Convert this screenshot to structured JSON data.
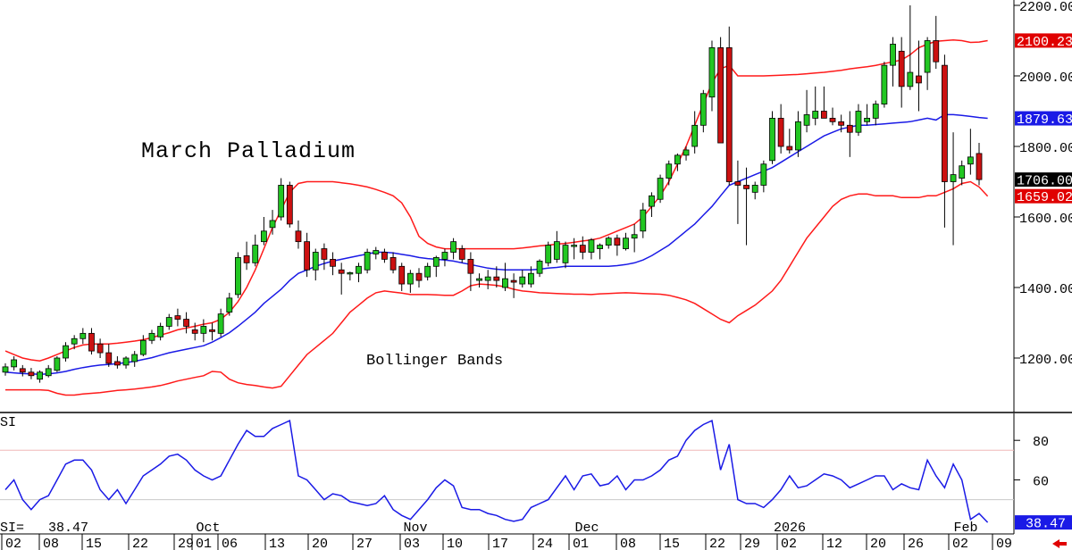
{
  "chart_data": [
    {
      "type": "candlestick",
      "title": "March Palladium",
      "annotation": "Bollinger Bands",
      "y_ticks": [
        1200,
        1400,
        1600,
        1800,
        2000,
        2200
      ],
      "y_tick_labels": [
        "1200.00",
        "1400.00",
        "1600.00",
        "1800.00",
        "2000.00",
        "2200.00"
      ],
      "ylim": [
        1100,
        2200
      ],
      "price_labels": [
        {
          "text": "2100.23",
          "value": 2100.23,
          "color": "#e00000"
        },
        {
          "text": "1879.63",
          "value": 1879.63,
          "color": "#1a1ae6"
        },
        {
          "text": "1706.00",
          "value": 1706.0,
          "color": "#000000"
        },
        {
          "text": "1659.02",
          "value": 1659.02,
          "color": "#e00000"
        }
      ],
      "colors": {
        "up": "#22c722",
        "down": "#cc1111",
        "band": "#ff1a1a",
        "middle": "#1a1ae6"
      },
      "grid": false,
      "ohlc": [
        [
          1160,
          1185,
          1150,
          1175
        ],
        [
          1175,
          1205,
          1165,
          1195
        ],
        [
          1170,
          1180,
          1148,
          1160
        ],
        [
          1160,
          1172,
          1140,
          1150
        ],
        [
          1140,
          1165,
          1130,
          1160
        ],
        [
          1150,
          1180,
          1145,
          1170
        ],
        [
          1165,
          1205,
          1160,
          1200
        ],
        [
          1200,
          1245,
          1190,
          1235
        ],
        [
          1240,
          1265,
          1225,
          1255
        ],
        [
          1255,
          1285,
          1240,
          1270
        ],
        [
          1270,
          1285,
          1210,
          1220
        ],
        [
          1240,
          1255,
          1200,
          1215
        ],
        [
          1215,
          1240,
          1175,
          1185
        ],
        [
          1190,
          1205,
          1170,
          1180
        ],
        [
          1180,
          1205,
          1170,
          1200
        ],
        [
          1190,
          1220,
          1175,
          1210
        ],
        [
          1210,
          1265,
          1205,
          1250
        ],
        [
          1250,
          1280,
          1240,
          1270
        ],
        [
          1260,
          1300,
          1250,
          1290
        ],
        [
          1290,
          1325,
          1280,
          1315
        ],
        [
          1320,
          1340,
          1290,
          1310
        ],
        [
          1310,
          1330,
          1270,
          1290
        ],
        [
          1280,
          1300,
          1250,
          1270
        ],
        [
          1270,
          1310,
          1245,
          1290
        ],
        [
          1280,
          1300,
          1250,
          1275
        ],
        [
          1270,
          1340,
          1260,
          1325
        ],
        [
          1330,
          1385,
          1320,
          1370
        ],
        [
          1380,
          1500,
          1370,
          1485
        ],
        [
          1490,
          1530,
          1450,
          1470
        ],
        [
          1470,
          1550,
          1460,
          1520
        ],
        [
          1530,
          1600,
          1520,
          1560
        ],
        [
          1570,
          1620,
          1550,
          1590
        ],
        [
          1600,
          1710,
          1590,
          1690
        ],
        [
          1690,
          1700,
          1570,
          1580
        ],
        [
          1560,
          1590,
          1510,
          1530
        ],
        [
          1530,
          1555,
          1430,
          1450
        ],
        [
          1450,
          1510,
          1420,
          1500
        ],
        [
          1510,
          1525,
          1450,
          1480
        ],
        [
          1480,
          1500,
          1435,
          1460
        ],
        [
          1450,
          1470,
          1380,
          1440
        ],
        [
          1440,
          1445,
          1420,
          1442
        ],
        [
          1440,
          1470,
          1415,
          1460
        ],
        [
          1450,
          1510,
          1440,
          1500
        ],
        [
          1495,
          1515,
          1480,
          1505
        ],
        [
          1500,
          1510,
          1470,
          1480
        ],
        [
          1485,
          1500,
          1440,
          1450
        ],
        [
          1460,
          1470,
          1390,
          1410
        ],
        [
          1410,
          1450,
          1385,
          1440
        ],
        [
          1440,
          1455,
          1400,
          1420
        ],
        [
          1430,
          1470,
          1420,
          1460
        ],
        [
          1460,
          1490,
          1430,
          1485
        ],
        [
          1480,
          1510,
          1460,
          1500
        ],
        [
          1500,
          1540,
          1480,
          1530
        ],
        [
          1510,
          1520,
          1470,
          1480
        ],
        [
          1480,
          1500,
          1390,
          1440
        ],
        [
          1420,
          1440,
          1400,
          1425
        ],
        [
          1420,
          1450,
          1395,
          1430
        ],
        [
          1430,
          1460,
          1400,
          1420
        ],
        [
          1400,
          1470,
          1390,
          1425
        ],
        [
          1420,
          1440,
          1370,
          1415
        ],
        [
          1410,
          1450,
          1400,
          1430
        ],
        [
          1410,
          1460,
          1400,
          1440
        ],
        [
          1440,
          1480,
          1430,
          1475
        ],
        [
          1470,
          1530,
          1460,
          1520
        ],
        [
          1480,
          1560,
          1470,
          1530
        ],
        [
          1470,
          1530,
          1455,
          1520
        ],
        [
          1520,
          1540,
          1480,
          1520
        ],
        [
          1520,
          1545,
          1480,
          1500
        ],
        [
          1500,
          1540,
          1480,
          1535
        ],
        [
          1510,
          1525,
          1480,
          1520
        ],
        [
          1520,
          1545,
          1510,
          1540
        ],
        [
          1540,
          1550,
          1490,
          1520
        ],
        [
          1510,
          1555,
          1505,
          1540
        ],
        [
          1540,
          1580,
          1500,
          1550
        ],
        [
          1560,
          1640,
          1540,
          1620
        ],
        [
          1630,
          1670,
          1600,
          1660
        ],
        [
          1650,
          1720,
          1640,
          1710
        ],
        [
          1710,
          1760,
          1690,
          1750
        ],
        [
          1750,
          1780,
          1730,
          1775
        ],
        [
          1775,
          1800,
          1760,
          1790
        ],
        [
          1800,
          1900,
          1780,
          1860
        ],
        [
          1860,
          1960,
          1840,
          1950
        ],
        [
          1940,
          2100,
          1900,
          2080
        ],
        [
          2080,
          2110,
          1820,
          1810
        ],
        [
          2080,
          2140,
          1690,
          1700
        ],
        [
          1700,
          1760,
          1580,
          1690
        ],
        [
          1690,
          1740,
          1520,
          1680
        ],
        [
          1670,
          1700,
          1650,
          1690
        ],
        [
          1690,
          1760,
          1670,
          1750
        ],
        [
          1760,
          1900,
          1750,
          1880
        ],
        [
          1880,
          1920,
          1780,
          1800
        ],
        [
          1800,
          1850,
          1780,
          1790
        ],
        [
          1790,
          1900,
          1770,
          1870
        ],
        [
          1860,
          1960,
          1840,
          1890
        ],
        [
          1880,
          1970,
          1860,
          1900
        ],
        [
          1900,
          1970,
          1880,
          1880
        ],
        [
          1880,
          1910,
          1860,
          1870
        ],
        [
          1870,
          1890,
          1840,
          1860
        ],
        [
          1860,
          1900,
          1770,
          1840
        ],
        [
          1840,
          1920,
          1830,
          1900
        ],
        [
          1870,
          1920,
          1860,
          1880
        ],
        [
          1880,
          1930,
          1860,
          1920
        ],
        [
          1920,
          2040,
          1910,
          2030
        ],
        [
          2030,
          2110,
          1970,
          2090
        ],
        [
          2070,
          2110,
          1910,
          1970
        ],
        [
          1970,
          2200,
          1960,
          2010
        ],
        [
          2000,
          2100,
          1900,
          1980
        ],
        [
          2010,
          2110,
          1960,
          2100
        ],
        [
          2100,
          2170,
          2020,
          2040
        ],
        [
          2030,
          2060,
          1570,
          1700
        ],
        [
          1700,
          1840,
          1520,
          1720
        ],
        [
          1710,
          1760,
          1690,
          1745
        ],
        [
          1750,
          1850,
          1720,
          1770
        ],
        [
          1780,
          1810,
          1690,
          1706
        ]
      ],
      "bollinger": {
        "upper": [
          1220,
          1210,
          1200,
          1195,
          1192,
          1200,
          1210,
          1220,
          1230,
          1237,
          1240,
          1240,
          1240,
          1242,
          1245,
          1248,
          1252,
          1258,
          1265,
          1272,
          1280,
          1285,
          1290,
          1296,
          1300,
          1310,
          1330,
          1360,
          1400,
          1450,
          1510,
          1570,
          1620,
          1670,
          1695,
          1700,
          1700,
          1700,
          1700,
          1697,
          1694,
          1690,
          1685,
          1678,
          1670,
          1660,
          1640,
          1600,
          1545,
          1525,
          1515,
          1510,
          1510,
          1510,
          1510,
          1510,
          1510,
          1510,
          1510,
          1510,
          1512,
          1515,
          1518,
          1520,
          1523,
          1525,
          1528,
          1532,
          1535,
          1540,
          1550,
          1560,
          1570,
          1580,
          1600,
          1630,
          1660,
          1700,
          1750,
          1800,
          1860,
          1920,
          1980,
          2020,
          2030,
          2000,
          2000,
          2000,
          2000,
          2001,
          2002,
          2003,
          2004,
          2006,
          2008,
          2010,
          2013,
          2016,
          2020,
          2023,
          2026,
          2030,
          2035,
          2040,
          2045,
          2060,
          2080,
          2090,
          2098,
          2100,
          2102,
          2100,
          2095,
          2096,
          2100
        ],
        "middle": [
          1160,
          1158,
          1156,
          1155,
          1154,
          1155,
          1158,
          1162,
          1168,
          1173,
          1177,
          1180,
          1182,
          1184,
          1187,
          1191,
          1196,
          1201,
          1208,
          1215,
          1220,
          1225,
          1230,
          1235,
          1245,
          1258,
          1272,
          1290,
          1310,
          1330,
          1355,
          1375,
          1395,
          1420,
          1440,
          1450,
          1460,
          1468,
          1475,
          1480,
          1485,
          1490,
          1495,
          1500,
          1500,
          1498,
          1494,
          1490,
          1485,
          1482,
          1480,
          1478,
          1475,
          1470,
          1465,
          1460,
          1455,
          1452,
          1450,
          1450,
          1450,
          1450,
          1452,
          1455,
          1457,
          1460,
          1460,
          1460,
          1460,
          1460,
          1460,
          1462,
          1465,
          1470,
          1478,
          1490,
          1505,
          1520,
          1540,
          1560,
          1580,
          1605,
          1630,
          1660,
          1690,
          1700,
          1710,
          1720,
          1730,
          1740,
          1755,
          1770,
          1785,
          1800,
          1815,
          1830,
          1840,
          1850,
          1855,
          1860,
          1860,
          1862,
          1864,
          1866,
          1868,
          1870,
          1875,
          1880,
          1875,
          1890,
          1890,
          1888,
          1885,
          1882,
          1879.63
        ],
        "lower": [
          1110,
          1110,
          1110,
          1110,
          1110,
          1108,
          1100,
          1095,
          1095,
          1098,
          1100,
          1102,
          1105,
          1108,
          1110,
          1112,
          1115,
          1118,
          1122,
          1128,
          1135,
          1140,
          1145,
          1150,
          1162,
          1160,
          1140,
          1130,
          1125,
          1122,
          1118,
          1115,
          1120,
          1150,
          1180,
          1210,
          1230,
          1250,
          1270,
          1300,
          1330,
          1350,
          1370,
          1385,
          1390,
          1387,
          1384,
          1380,
          1380,
          1380,
          1379,
          1378,
          1378,
          1390,
          1405,
          1410,
          1408,
          1406,
          1402,
          1395,
          1390,
          1388,
          1385,
          1384,
          1383,
          1382,
          1381,
          1381,
          1380,
          1382,
          1383,
          1384,
          1385,
          1384,
          1383,
          1382,
          1381,
          1378,
          1372,
          1365,
          1355,
          1340,
          1325,
          1310,
          1300,
          1320,
          1335,
          1350,
          1370,
          1390,
          1420,
          1460,
          1500,
          1540,
          1570,
          1600,
          1630,
          1650,
          1660,
          1665,
          1665,
          1660,
          1660,
          1660,
          1655,
          1655,
          1655,
          1660,
          1660,
          1670,
          1680,
          1695,
          1700,
          1685,
          1659.02
        ]
      },
      "x_date_ticks": [
        "02",
        "08",
        "15",
        "22",
        "29",
        "01",
        "06",
        "13",
        "20",
        "27",
        "03",
        "10",
        "17",
        "24",
        "01",
        "08",
        "15",
        "22",
        "29",
        "02",
        "12",
        "20",
        "26",
        "02",
        "09"
      ],
      "x_month_labels": [
        "Oct",
        "Nov",
        "Dec",
        "2026",
        "Feb"
      ]
    },
    {
      "type": "line",
      "label": "SI",
      "value_label": "SI=   38.47",
      "current_value_label": "38.47",
      "y_ticks": [
        60,
        80
      ],
      "y_tick_labels": [
        "60",
        "80"
      ],
      "reference_lines": [
        50,
        75
      ],
      "ylim": [
        34,
        95
      ],
      "color": "#1a1ae6",
      "values": [
        55,
        60,
        50,
        45,
        50,
        52,
        60,
        68,
        70,
        70,
        65,
        55,
        50,
        55,
        48,
        55,
        62,
        65,
        68,
        72,
        73,
        70,
        65,
        62,
        60,
        62,
        70,
        78,
        85,
        82,
        82,
        86,
        88,
        90,
        62,
        60,
        55,
        50,
        53,
        52,
        49,
        48,
        47,
        48,
        52,
        45,
        42,
        40,
        45,
        50,
        56,
        60,
        57,
        46,
        45,
        45,
        43,
        42,
        40,
        39,
        40,
        46,
        48,
        50,
        56,
        62,
        55,
        62,
        63,
        57,
        58,
        62,
        55,
        60,
        60,
        62,
        65,
        70,
        72,
        80,
        85,
        88,
        90,
        65,
        78,
        50,
        48,
        48,
        46,
        50,
        55,
        62,
        56,
        57,
        60,
        63,
        62,
        60,
        56,
        58,
        60,
        62,
        62,
        55,
        58,
        56,
        55,
        70,
        62,
        56,
        68,
        60,
        40,
        43,
        38.47
      ]
    }
  ],
  "bottom_date_labels": [
    "02",
    "08",
    "15",
    "22",
    "29",
    "01",
    "06",
    "13",
    "20",
    "27",
    "03",
    "10",
    "17",
    "24",
    "01",
    "08",
    "15",
    "22",
    "29",
    "02",
    "12",
    "20",
    "26",
    "02",
    "09"
  ]
}
